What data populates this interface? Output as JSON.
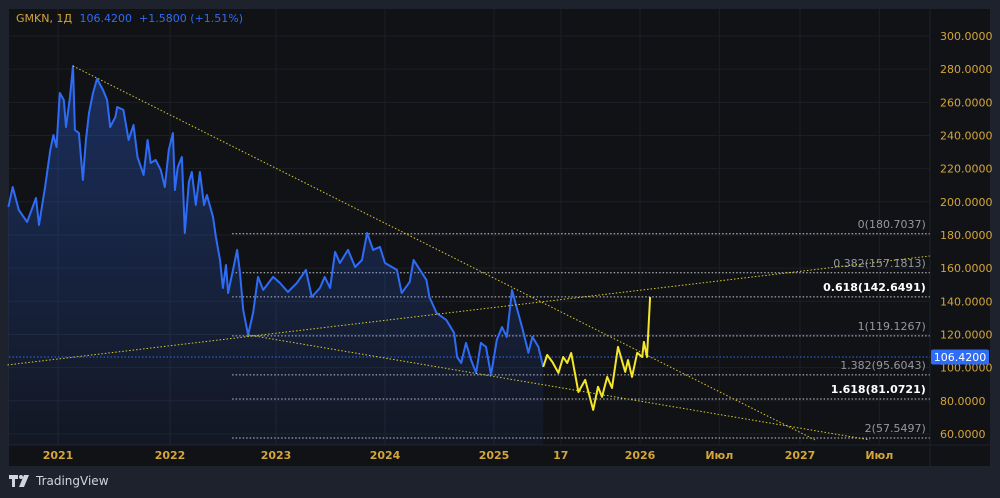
{
  "header": {
    "symbol": "GMKN, 1Д",
    "price": "106.4200",
    "change": "+1.5800",
    "change_pct": "(+1.51%)"
  },
  "branding": {
    "name": "TradingView"
  },
  "colors": {
    "background": "#111216",
    "frame": "#1e222d",
    "price_line": "#2f6cf5",
    "projection_line": "#f5e72a",
    "trendline": "#d9cc2c",
    "axis_text": "#d4a53a",
    "fib_text": "#9598a1"
  },
  "chart_data": {
    "type": "line",
    "ylim": [
      55,
      305
    ],
    "y_ticks": [
      "300.0000",
      "280.0000",
      "260.0000",
      "240.0000",
      "220.0000",
      "200.0000",
      "180.0000",
      "160.0000",
      "140.0000",
      "120.0000",
      "100.0000",
      "80.0000",
      "60.0000"
    ],
    "x_ticks": [
      {
        "label": "2021",
        "date": "2021-01-01"
      },
      {
        "label": "2022",
        "date": "2022-01-01"
      },
      {
        "label": "2023",
        "date": "2023-01-01"
      },
      {
        "label": "2024",
        "date": "2024-01-01"
      },
      {
        "label": "2025",
        "date": "2025-01-01"
      },
      {
        "label": "17",
        "date": "2025-06-17"
      },
      {
        "label": "2026",
        "date": "2026-01-01"
      },
      {
        "label": "Июл",
        "date": "2026-07-01"
      },
      {
        "label": "2027",
        "date": "2027-01-01"
      },
      {
        "label": "Июл",
        "date": "2027-07-01"
      }
    ],
    "last_price": {
      "value": 106.42,
      "label": "106.4200"
    },
    "series": [
      {
        "style": "historical",
        "points": [
          [
            "2020-07-23",
            196.9
          ],
          [
            "2020-08-06",
            208.9
          ],
          [
            "2020-08-26",
            195.1
          ],
          [
            "2020-09-22",
            187.8
          ],
          [
            "2020-10-21",
            202.3
          ],
          [
            "2020-10-31",
            186.0
          ],
          [
            "2020-11-20",
            208.9
          ],
          [
            "2020-12-07",
            231.3
          ],
          [
            "2020-12-17",
            240.3
          ],
          [
            "2020-12-27",
            233.1
          ],
          [
            "2021-01-07",
            265.6
          ],
          [
            "2021-01-20",
            261.4
          ],
          [
            "2021-01-27",
            245.1
          ],
          [
            "2021-02-09",
            263.2
          ],
          [
            "2021-02-19",
            281.9
          ],
          [
            "2021-02-25",
            243.3
          ],
          [
            "2021-03-10",
            241.5
          ],
          [
            "2021-03-23",
            213.2
          ],
          [
            "2021-04-02",
            237.3
          ],
          [
            "2021-04-12",
            253.6
          ],
          [
            "2021-04-25",
            265.6
          ],
          [
            "2021-05-08",
            274.1
          ],
          [
            "2021-05-28",
            267.4
          ],
          [
            "2021-06-10",
            261.4
          ],
          [
            "2021-06-20",
            245.1
          ],
          [
            "2021-07-07",
            251.2
          ],
          [
            "2021-07-13",
            257.2
          ],
          [
            "2021-08-02",
            255.4
          ],
          [
            "2021-08-19",
            237.3
          ],
          [
            "2021-09-04",
            246.3
          ],
          [
            "2021-09-17",
            227.0
          ],
          [
            "2021-10-07",
            216.2
          ],
          [
            "2021-10-20",
            237.3
          ],
          [
            "2021-10-30",
            223.4
          ],
          [
            "2021-11-15",
            225.2
          ],
          [
            "2021-12-02",
            219.2
          ],
          [
            "2021-12-15",
            208.9
          ],
          [
            "2021-12-28",
            231.3
          ],
          [
            "2022-01-11",
            241.5
          ],
          [
            "2022-01-18",
            207.1
          ],
          [
            "2022-01-28",
            221.0
          ],
          [
            "2022-02-11",
            227.0
          ],
          [
            "2022-02-21",
            181.2
          ],
          [
            "2022-03-07",
            212.0
          ],
          [
            "2022-03-17",
            218.0
          ],
          [
            "2022-03-31",
            198.1
          ],
          [
            "2022-04-14",
            218.0
          ],
          [
            "2022-04-28",
            198.1
          ],
          [
            "2022-05-08",
            204.1
          ],
          [
            "2022-05-29",
            190.9
          ],
          [
            "2022-06-08",
            178.8
          ],
          [
            "2022-06-22",
            164.9
          ],
          [
            "2022-07-02",
            148.0
          ],
          [
            "2022-07-13",
            161.9
          ],
          [
            "2022-07-20",
            145.0
          ],
          [
            "2022-08-06",
            158.9
          ],
          [
            "2022-08-20",
            171.0
          ],
          [
            "2022-08-30",
            157.1
          ],
          [
            "2022-09-10",
            134.8
          ],
          [
            "2022-09-27",
            119.7
          ],
          [
            "2022-10-14",
            133.0
          ],
          [
            "2022-10-31",
            154.7
          ],
          [
            "2022-11-18",
            146.8
          ],
          [
            "2022-12-22",
            154.7
          ],
          [
            "2023-01-14",
            151.1
          ],
          [
            "2023-02-10",
            145.6
          ],
          [
            "2023-03-12",
            151.1
          ],
          [
            "2023-04-11",
            158.9
          ],
          [
            "2023-05-01",
            142.6
          ],
          [
            "2023-05-28",
            148.0
          ],
          [
            "2023-06-13",
            154.7
          ],
          [
            "2023-07-01",
            148.0
          ],
          [
            "2023-07-18",
            169.8
          ],
          [
            "2023-08-03",
            163.1
          ],
          [
            "2023-08-30",
            171.0
          ],
          [
            "2023-09-23",
            160.7
          ],
          [
            "2023-10-16",
            164.9
          ],
          [
            "2023-11-02",
            181.2
          ],
          [
            "2023-11-22",
            171.0
          ],
          [
            "2023-12-15",
            172.8
          ],
          [
            "2024-01-01",
            163.1
          ],
          [
            "2024-02-10",
            158.9
          ],
          [
            "2024-02-26",
            145.0
          ],
          [
            "2024-03-24",
            151.7
          ],
          [
            "2024-04-06",
            164.9
          ],
          [
            "2024-05-19",
            152.9
          ],
          [
            "2024-05-29",
            142.6
          ],
          [
            "2024-06-22",
            133.0
          ],
          [
            "2024-07-25",
            128.7
          ],
          [
            "2024-08-20",
            120.9
          ],
          [
            "2024-08-30",
            106.4
          ],
          [
            "2024-09-13",
            102.8
          ],
          [
            "2024-09-29",
            114.9
          ],
          [
            "2024-10-16",
            104.6
          ],
          [
            "2024-11-02",
            96.8
          ],
          [
            "2024-11-18",
            114.9
          ],
          [
            "2024-12-05",
            112.5
          ],
          [
            "2024-12-22",
            95.6
          ],
          [
            "2025-01-08",
            116.7
          ],
          [
            "2025-01-21",
            124.5
          ],
          [
            "2025-02-02",
            118.5
          ],
          [
            "2025-02-15",
            146.8
          ],
          [
            "2025-02-27",
            136.0
          ],
          [
            "2025-03-14",
            122.7
          ],
          [
            "2025-03-28",
            108.9
          ],
          [
            "2025-04-07",
            118.5
          ],
          [
            "2025-04-22",
            112.5
          ],
          [
            "2025-05-04",
            100.4
          ]
        ]
      },
      {
        "style": "projection",
        "points": [
          [
            "2025-05-04",
            100.4
          ],
          [
            "2025-05-14",
            107.6
          ],
          [
            "2025-05-27",
            103.4
          ],
          [
            "2025-06-11",
            96.8
          ],
          [
            "2025-06-23",
            106.4
          ],
          [
            "2025-07-03",
            102.8
          ],
          [
            "2025-07-13",
            108.8
          ],
          [
            "2025-07-31",
            85.3
          ],
          [
            "2025-08-17",
            92.6
          ],
          [
            "2025-09-06",
            74.5
          ],
          [
            "2025-09-18",
            88.4
          ],
          [
            "2025-09-28",
            82.3
          ],
          [
            "2025-10-11",
            94.4
          ],
          [
            "2025-10-23",
            87.7
          ],
          [
            "2025-11-07",
            112.5
          ],
          [
            "2025-11-25",
            97.4
          ],
          [
            "2025-12-02",
            104.6
          ],
          [
            "2025-12-12",
            94.4
          ],
          [
            "2025-12-25",
            108.9
          ],
          [
            "2026-01-06",
            106.4
          ],
          [
            "2026-01-10",
            115.5
          ],
          [
            "2026-01-17",
            106.4
          ],
          [
            "2026-01-24",
            142.6
          ]
        ]
      }
    ],
    "trendlines": [
      {
        "from": [
          "2021-02-19",
          281.9
        ],
        "to": [
          "2027-02-04",
          56.4
        ]
      },
      {
        "from": [
          "2020-07-20",
          101.6
        ],
        "to": [
          "2027-10-24",
          167.3
        ]
      },
      {
        "from": [
          "2022-09-27",
          119.7
        ],
        "to": [
          "2027-06-09",
          56.4
        ]
      }
    ],
    "fibonacci": {
      "from_date": "2022-08-03",
      "to_date": "2027-10-24",
      "levels": [
        {
          "ratio": "0",
          "value": 180.7037,
          "label": "0(180.7037)",
          "emphasis": false
        },
        {
          "ratio": "0.382",
          "value": 157.1813,
          "label": "0.382(157.1813)",
          "emphasis": false
        },
        {
          "ratio": "0.618",
          "value": 142.6491,
          "label": "0.618(142.6491)",
          "emphasis": true
        },
        {
          "ratio": "1",
          "value": 119.1267,
          "label": "1(119.1267)",
          "emphasis": false
        },
        {
          "ratio": "1.382",
          "value": 95.6043,
          "label": "1.382(95.6043)",
          "emphasis": false
        },
        {
          "ratio": "1.618",
          "value": 81.0721,
          "label": "1.618(81.0721)",
          "emphasis": true
        },
        {
          "ratio": "2",
          "value": 57.5497,
          "label": "2(57.5497)",
          "emphasis": false
        }
      ]
    }
  }
}
